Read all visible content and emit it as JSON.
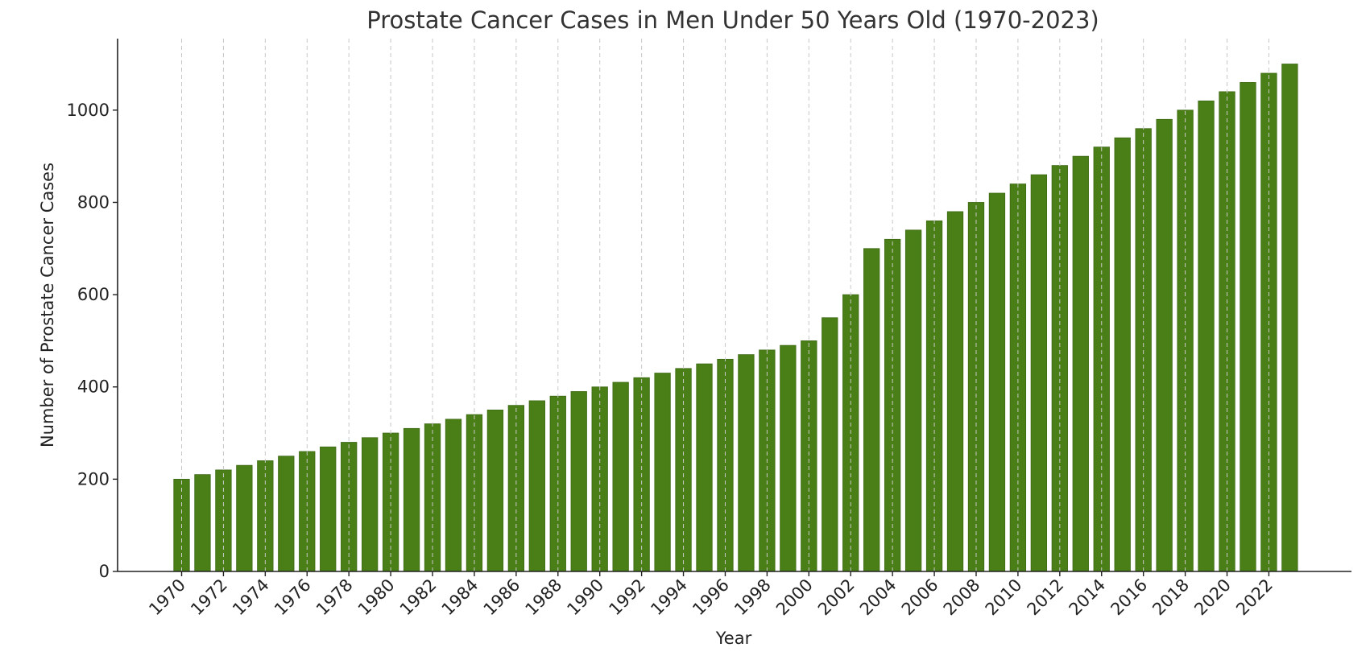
{
  "chart_data": {
    "type": "bar",
    "title": "Prostate Cancer Cases in Men Under 50 Years Old (1970-2023)",
    "xlabel": "Year",
    "ylabel": "Number of Prostate Cancer Cases",
    "categories": [
      1970,
      1971,
      1972,
      1973,
      1974,
      1975,
      1976,
      1977,
      1978,
      1979,
      1980,
      1981,
      1982,
      1983,
      1984,
      1985,
      1986,
      1987,
      1988,
      1989,
      1990,
      1991,
      1992,
      1993,
      1994,
      1995,
      1996,
      1997,
      1998,
      1999,
      2000,
      2001,
      2002,
      2003,
      2004,
      2005,
      2006,
      2007,
      2008,
      2009,
      2010,
      2011,
      2012,
      2013,
      2014,
      2015,
      2016,
      2017,
      2018,
      2019,
      2020,
      2021,
      2022,
      2023
    ],
    "values": [
      200,
      210,
      220,
      230,
      240,
      250,
      260,
      270,
      280,
      290,
      300,
      310,
      320,
      330,
      340,
      350,
      360,
      370,
      380,
      390,
      400,
      410,
      420,
      430,
      440,
      450,
      460,
      470,
      480,
      490,
      500,
      550,
      600,
      700,
      720,
      740,
      760,
      780,
      800,
      820,
      840,
      860,
      880,
      900,
      920,
      940,
      960,
      980,
      1000,
      1020,
      1040,
      1060,
      1080,
      1100
    ],
    "x_tick_labels": [
      "1970",
      "1972",
      "1974",
      "1976",
      "1978",
      "1980",
      "1982",
      "1984",
      "1986",
      "1988",
      "1990",
      "1992",
      "1994",
      "1996",
      "1998",
      "2000",
      "2002",
      "2004",
      "2006",
      "2008",
      "2010",
      "2012",
      "2014",
      "2016",
      "2018",
      "2020",
      "2022"
    ],
    "y_tick_labels": [
      "0",
      "200",
      "400",
      "600",
      "800",
      "1000"
    ],
    "y_ticks": [
      0,
      200,
      400,
      600,
      800,
      1000
    ],
    "ylim": [
      0,
      1155
    ],
    "grid": "vertical dashed at labeled years",
    "legend": "none",
    "bar_color": "#4a7e16"
  }
}
